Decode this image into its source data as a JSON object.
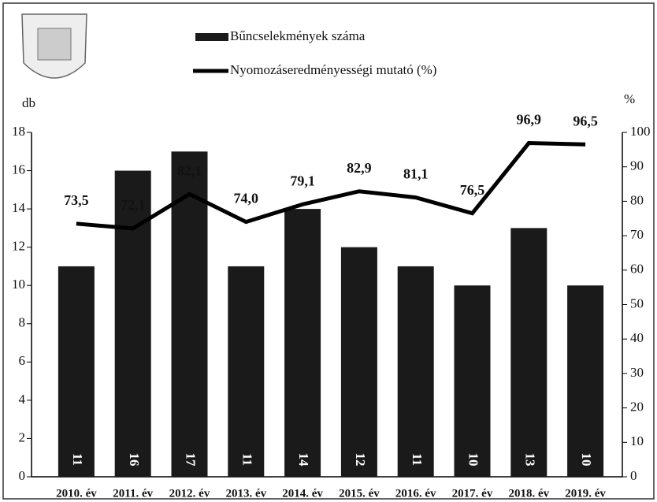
{
  "chart_data": {
    "type": "bar-line",
    "categories": [
      "2010. év",
      "2011. év",
      "2012. év",
      "2013. év",
      "2014. év",
      "2015. év",
      "2016. év",
      "2017. év",
      "2018. év",
      "2019. év"
    ],
    "series": [
      {
        "name": "Bűncselekmények száma",
        "color": "#1a1a1a",
        "type": "bar",
        "values": [
          11,
          16,
          17,
          11,
          14,
          12,
          11,
          10,
          13,
          10
        ]
      },
      {
        "name": "Nyomozáseredményességi mutató (%)",
        "color": "#000000",
        "type": "line",
        "axis": "y2",
        "values": [
          73.5,
          72.1,
          82.1,
          74.0,
          79.1,
          82.9,
          81.1,
          76.5,
          96.9,
          96.5
        ],
        "value_labels": [
          "73,5",
          "72,1",
          "82,1",
          "74,0",
          "79,1",
          "82,9",
          "81,1",
          "76,5",
          "96,9",
          "96,5"
        ]
      }
    ],
    "ylabel": "db",
    "y2label": "%",
    "ylim": [
      0,
      18
    ],
    "yticks": [
      0,
      2,
      4,
      6,
      8,
      10,
      12,
      14,
      16,
      18
    ],
    "y2lim": [
      0,
      100
    ],
    "y2ticks": [
      0,
      10,
      20,
      30,
      40,
      50,
      60,
      70,
      80,
      90,
      100
    ]
  }
}
